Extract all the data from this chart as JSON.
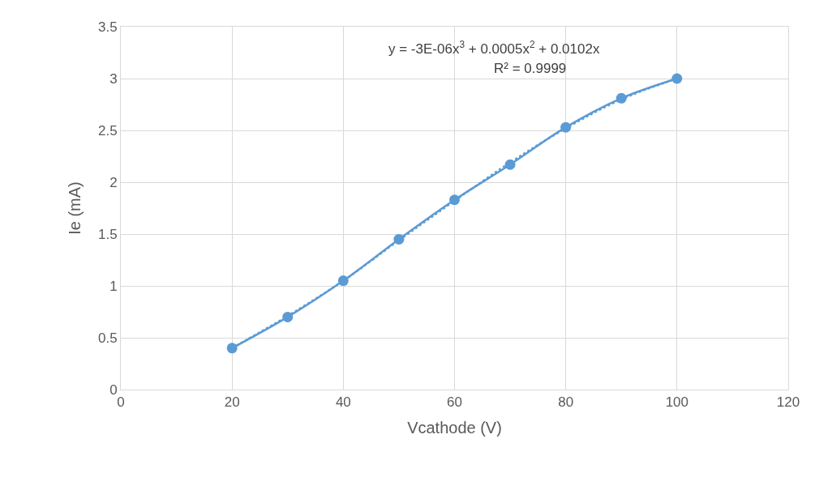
{
  "chart_data": {
    "type": "line",
    "xlabel": "Vcathode (V)",
    "ylabel": "Ie (mA)",
    "xlim": [
      0,
      120
    ],
    "xticks": [
      0,
      20,
      40,
      60,
      80,
      100,
      120
    ],
    "ylim": [
      0,
      3.5
    ],
    "yticks": [
      0,
      0.5,
      1,
      1.5,
      2,
      2.5,
      3,
      3.5
    ],
    "grid": true,
    "marker": "circle",
    "line_style": "solid",
    "x": [
      20,
      30,
      40,
      50,
      60,
      70,
      80,
      90,
      100
    ],
    "series": [
      {
        "color": "#5b9bd5",
        "values": [
          0.4,
          0.7,
          1.05,
          1.45,
          1.83,
          2.17,
          2.53,
          2.81,
          3.0
        ]
      },
      {
        "type": "line",
        "color": "#5b9bd5",
        "marker": "none",
        "line_style": "dotted",
        "x": [
          20,
          30,
          40,
          50,
          60,
          70,
          80,
          90,
          100
        ],
        "values": [
          0.4,
          0.71,
          1.05,
          1.44,
          1.82,
          2.19,
          2.52,
          2.8,
          3.0
        ]
      }
    ],
    "annotations": [
      "y = -3E-06x$^{3}$ + 0.0005x$^{2}$ + 0.0102x",
      "R² = 0.9999"
    ]
  }
}
